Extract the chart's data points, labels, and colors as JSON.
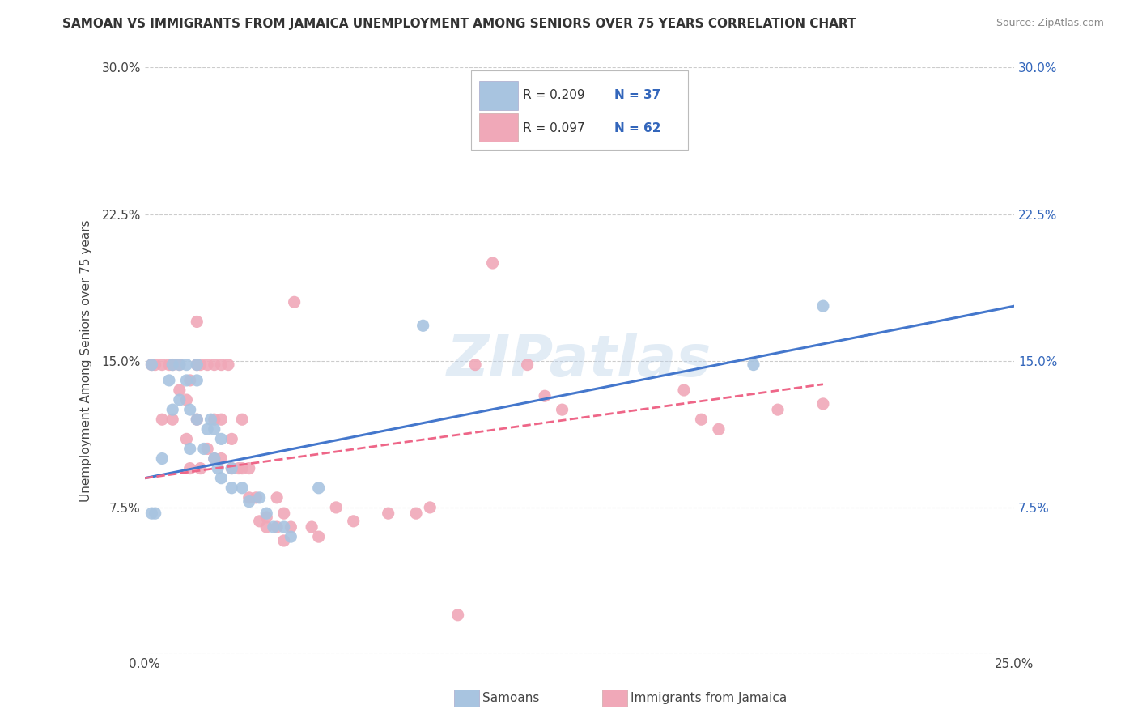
{
  "title": "SAMOAN VS IMMIGRANTS FROM JAMAICA UNEMPLOYMENT AMONG SENIORS OVER 75 YEARS CORRELATION CHART",
  "source": "Source: ZipAtlas.com",
  "ylabel": "Unemployment Among Seniors over 75 years",
  "xlim": [
    0.0,
    0.25
  ],
  "ylim": [
    0.0,
    0.3
  ],
  "xticks": [
    0.0,
    0.05,
    0.1,
    0.15,
    0.2,
    0.25
  ],
  "yticks": [
    0.0,
    0.075,
    0.15,
    0.225,
    0.3
  ],
  "legend_blue_R": "R = 0.209",
  "legend_blue_N": "N = 37",
  "legend_pink_R": "R = 0.097",
  "legend_pink_N": "N = 62",
  "legend_label_blue": "Samoans",
  "legend_label_pink": "Immigrants from Jamaica",
  "blue_color": "#a8c4e0",
  "pink_color": "#f0a8b8",
  "blue_line_color": "#4477cc",
  "pink_line_color": "#ee6688",
  "watermark_text": "ZIPatlas",
  "blue_scatter_x": [
    0.002,
    0.002,
    0.003,
    0.005,
    0.007,
    0.008,
    0.008,
    0.01,
    0.01,
    0.012,
    0.012,
    0.013,
    0.013,
    0.015,
    0.015,
    0.015,
    0.017,
    0.018,
    0.019,
    0.02,
    0.02,
    0.021,
    0.022,
    0.022,
    0.025,
    0.025,
    0.028,
    0.03,
    0.033,
    0.035,
    0.037,
    0.04,
    0.042,
    0.05,
    0.08,
    0.175,
    0.195
  ],
  "blue_scatter_y": [
    0.148,
    0.072,
    0.072,
    0.1,
    0.14,
    0.148,
    0.125,
    0.148,
    0.13,
    0.148,
    0.14,
    0.125,
    0.105,
    0.14,
    0.148,
    0.12,
    0.105,
    0.115,
    0.12,
    0.1,
    0.115,
    0.095,
    0.11,
    0.09,
    0.095,
    0.085,
    0.085,
    0.078,
    0.08,
    0.072,
    0.065,
    0.065,
    0.06,
    0.085,
    0.168,
    0.148,
    0.178
  ],
  "pink_scatter_x": [
    0.002,
    0.003,
    0.005,
    0.005,
    0.007,
    0.008,
    0.008,
    0.01,
    0.01,
    0.012,
    0.012,
    0.013,
    0.013,
    0.015,
    0.015,
    0.015,
    0.016,
    0.016,
    0.018,
    0.018,
    0.02,
    0.02,
    0.02,
    0.022,
    0.022,
    0.022,
    0.024,
    0.025,
    0.025,
    0.027,
    0.028,
    0.028,
    0.03,
    0.03,
    0.032,
    0.033,
    0.035,
    0.035,
    0.038,
    0.038,
    0.04,
    0.04,
    0.042,
    0.043,
    0.048,
    0.05,
    0.055,
    0.06,
    0.07,
    0.078,
    0.082,
    0.09,
    0.095,
    0.1,
    0.11,
    0.115,
    0.12,
    0.155,
    0.16,
    0.165,
    0.182,
    0.195
  ],
  "pink_scatter_y": [
    0.148,
    0.148,
    0.148,
    0.12,
    0.148,
    0.148,
    0.12,
    0.148,
    0.135,
    0.13,
    0.11,
    0.14,
    0.095,
    0.17,
    0.148,
    0.12,
    0.148,
    0.095,
    0.148,
    0.105,
    0.148,
    0.12,
    0.1,
    0.148,
    0.12,
    0.1,
    0.148,
    0.095,
    0.11,
    0.095,
    0.12,
    0.095,
    0.095,
    0.08,
    0.08,
    0.068,
    0.07,
    0.065,
    0.08,
    0.065,
    0.072,
    0.058,
    0.065,
    0.18,
    0.065,
    0.06,
    0.075,
    0.068,
    0.072,
    0.072,
    0.075,
    0.02,
    0.148,
    0.2,
    0.148,
    0.132,
    0.125,
    0.135,
    0.12,
    0.115,
    0.125,
    0.128
  ],
  "blue_line_x": [
    0.0,
    0.25
  ],
  "blue_line_y": [
    0.09,
    0.178
  ],
  "pink_line_x": [
    0.0,
    0.195
  ],
  "pink_line_y": [
    0.09,
    0.138
  ]
}
